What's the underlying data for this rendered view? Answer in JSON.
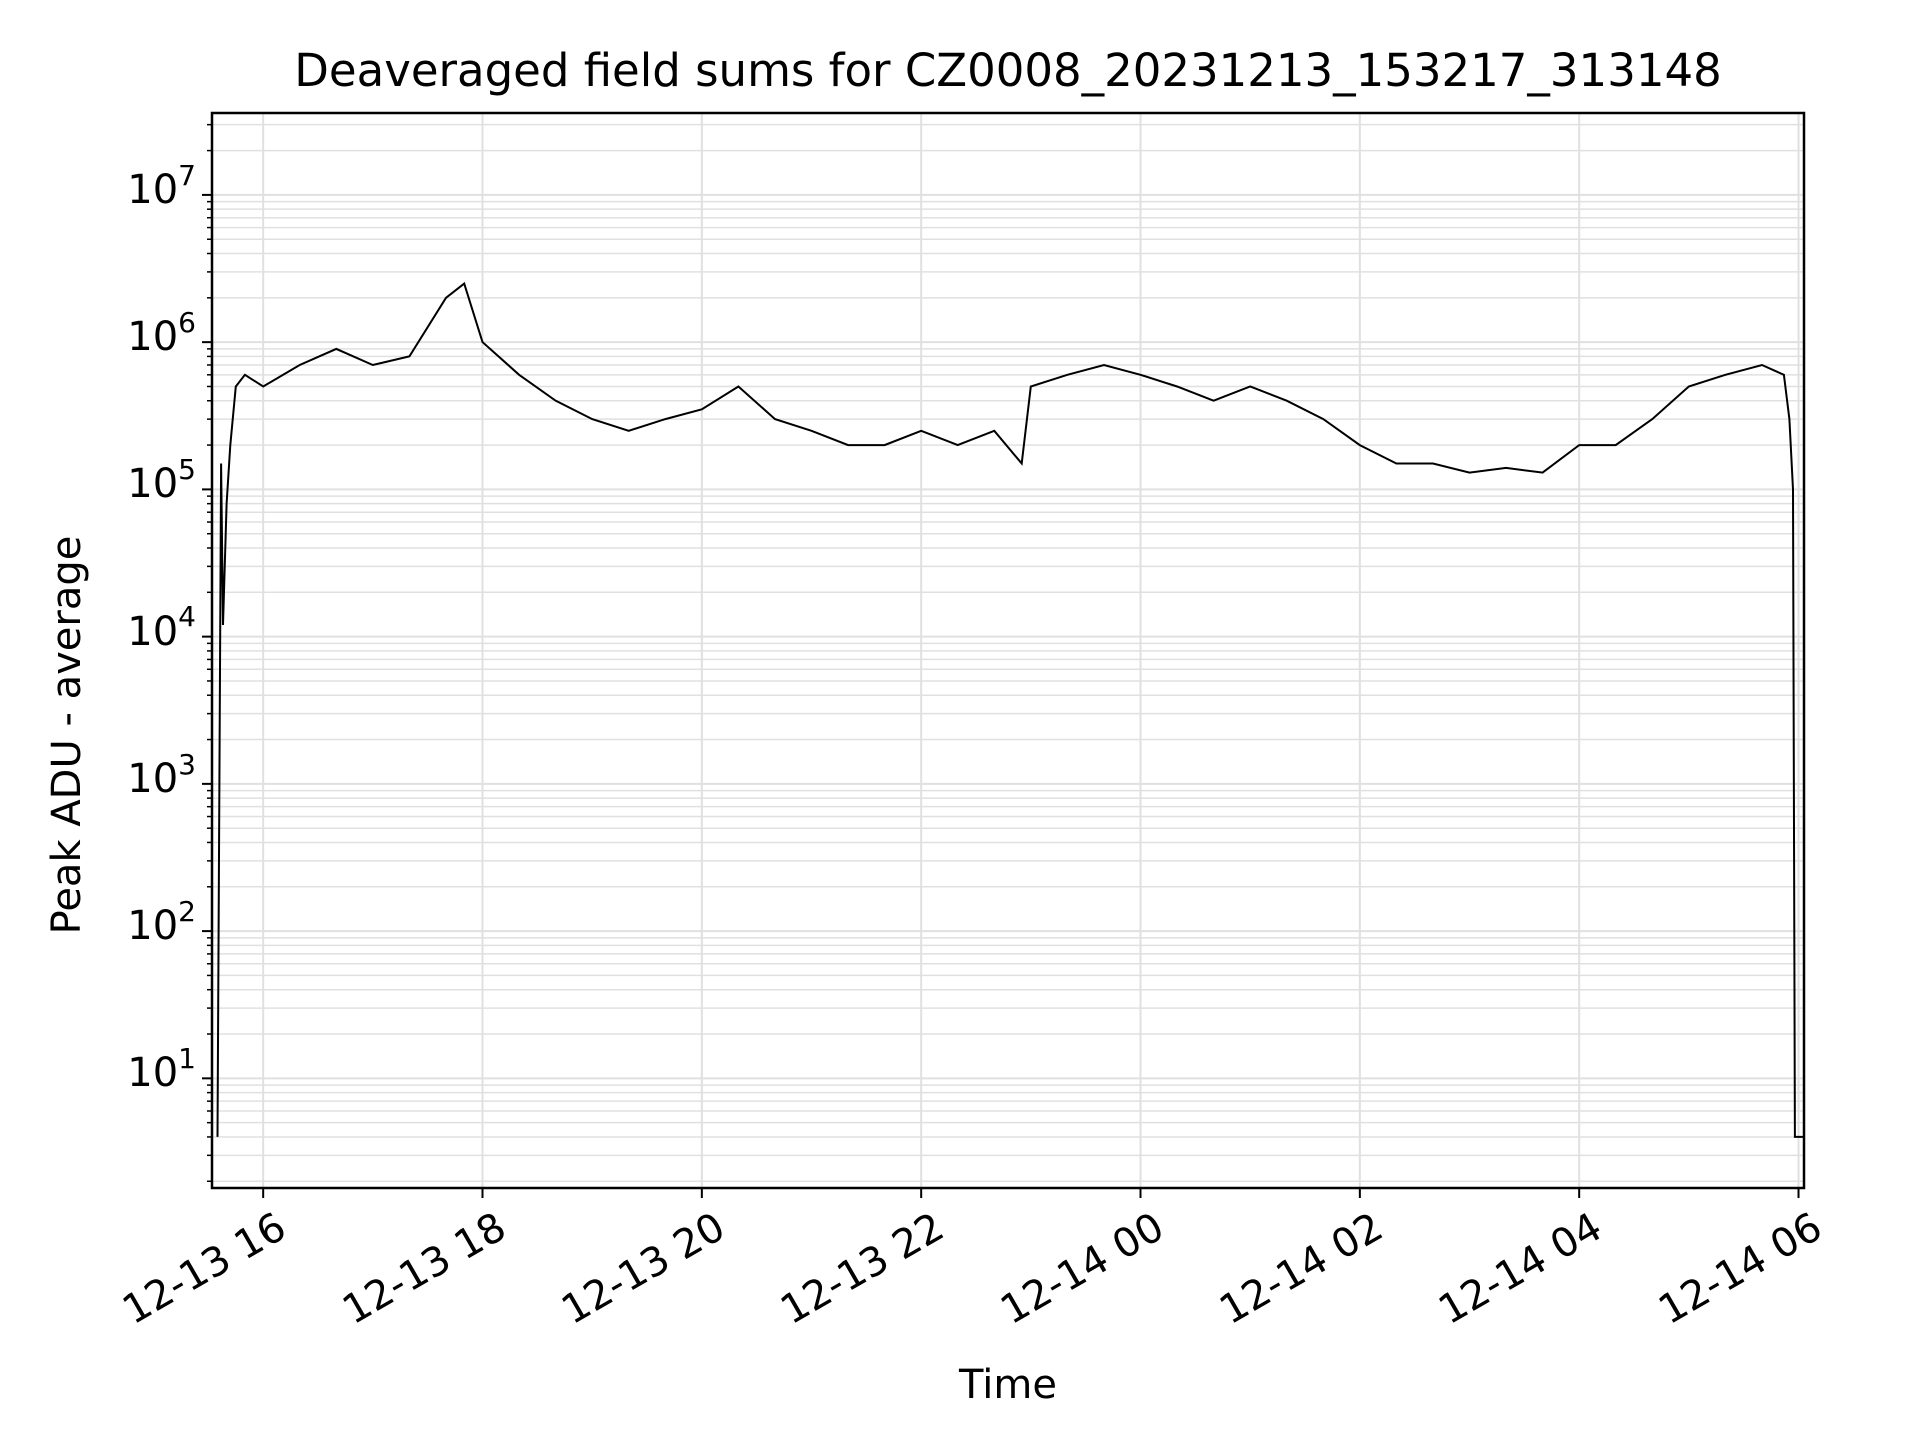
{
  "chart_data": {
    "type": "line",
    "title": "Deaveraged field sums for CZ0008_20231213_153217_313148",
    "xlabel": "Time",
    "ylabel": "Peak ADU - average",
    "y_scale": "log",
    "ylim": [
      1.8,
      36000000
    ],
    "xlim": [
      "2023-12-13 15:32",
      "2023-12-14 06:03"
    ],
    "grid": true,
    "grid_minor": true,
    "line_color": "#000000",
    "grid_color": "#e0e0e0",
    "x_ticks": [
      {
        "value": "2023-12-13 16:00",
        "label": "12-13 16"
      },
      {
        "value": "2023-12-13 18:00",
        "label": "12-13 18"
      },
      {
        "value": "2023-12-13 20:00",
        "label": "12-13 20"
      },
      {
        "value": "2023-12-13 22:00",
        "label": "12-13 22"
      },
      {
        "value": "2023-12-14 00:00",
        "label": "12-14 00"
      },
      {
        "value": "2023-12-14 02:00",
        "label": "12-14 02"
      },
      {
        "value": "2023-12-14 04:00",
        "label": "12-14 04"
      },
      {
        "value": "2023-12-14 06:00",
        "label": "12-14 06"
      }
    ],
    "y_ticks": [
      {
        "value": 10,
        "base": "10",
        "exp": "1"
      },
      {
        "value": 100,
        "base": "10",
        "exp": "2"
      },
      {
        "value": 1000,
        "base": "10",
        "exp": "3"
      },
      {
        "value": 10000,
        "base": "10",
        "exp": "4"
      },
      {
        "value": 100000,
        "base": "10",
        "exp": "5"
      },
      {
        "value": 1000000,
        "base": "10",
        "exp": "6"
      },
      {
        "value": 10000000,
        "base": "10",
        "exp": "7"
      }
    ],
    "series": [
      {
        "x": [
          "2023-12-13 15:35",
          "2023-12-13 15:37",
          "2023-12-13 15:38",
          "2023-12-13 15:40",
          "2023-12-13 15:42",
          "2023-12-13 15:45",
          "2023-12-13 15:50",
          "2023-12-13 16:00",
          "2023-12-13 16:20",
          "2023-12-13 16:40",
          "2023-12-13 17:00",
          "2023-12-13 17:20",
          "2023-12-13 17:40",
          "2023-12-13 17:50",
          "2023-12-13 18:00",
          "2023-12-13 18:20",
          "2023-12-13 18:40",
          "2023-12-13 19:00",
          "2023-12-13 19:20",
          "2023-12-13 19:40",
          "2023-12-13 20:00",
          "2023-12-13 20:20",
          "2023-12-13 20:40",
          "2023-12-13 21:00",
          "2023-12-13 21:20",
          "2023-12-13 21:40",
          "2023-12-13 22:00",
          "2023-12-13 22:20",
          "2023-12-13 22:40",
          "2023-12-13 22:55",
          "2023-12-13 23:00",
          "2023-12-13 23:20",
          "2023-12-13 23:40",
          "2023-12-14 00:00",
          "2023-12-14 00:20",
          "2023-12-14 00:40",
          "2023-12-14 01:00",
          "2023-12-14 01:20",
          "2023-12-14 01:40",
          "2023-12-14 02:00",
          "2023-12-14 02:20",
          "2023-12-14 02:40",
          "2023-12-14 03:00",
          "2023-12-14 03:20",
          "2023-12-14 03:40",
          "2023-12-14 04:00",
          "2023-12-14 04:20",
          "2023-12-14 04:40",
          "2023-12-14 05:00",
          "2023-12-14 05:20",
          "2023-12-14 05:40",
          "2023-12-14 05:52",
          "2023-12-14 05:55",
          "2023-12-14 05:57",
          "2023-12-14 05:58",
          "2023-12-14 06:03"
        ],
        "y": [
          4,
          150000,
          12000,
          80000,
          200000,
          500000,
          600000,
          500000,
          700000,
          900000,
          700000,
          800000,
          2000000,
          2500000,
          1000000,
          600000,
          400000,
          300000,
          250000,
          300000,
          350000,
          500000,
          300000,
          250000,
          200000,
          200000,
          250000,
          200000,
          250000,
          150000,
          500000,
          600000,
          700000,
          600000,
          500000,
          400000,
          500000,
          400000,
          300000,
          200000,
          150000,
          150000,
          130000,
          140000,
          130000,
          200000,
          200000,
          300000,
          500000,
          600000,
          700000,
          600000,
          300000,
          100000,
          4,
          4
        ]
      }
    ]
  }
}
